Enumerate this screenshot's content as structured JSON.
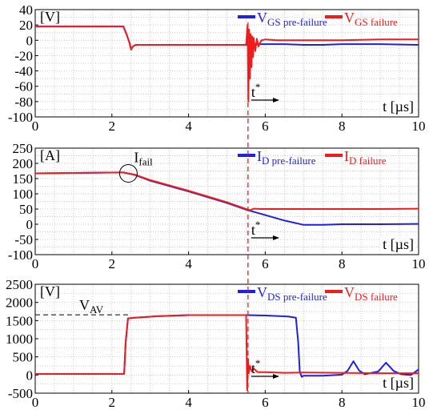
{
  "colors": {
    "pre": "#1f1fe6",
    "failure": "#ee1c1c",
    "grid": "#b4b4b4",
    "axis": "#000000"
  },
  "chart_data": [
    {
      "type": "line",
      "unit_label": "[V]",
      "xlabel": "t [µs]",
      "xlim": [
        0,
        10
      ],
      "ylim": [
        -100,
        40
      ],
      "x_ticks": [
        0,
        2,
        4,
        6,
        8,
        10
      ],
      "y_ticks": [
        40,
        20,
        0,
        -20,
        -40,
        -60,
        -80,
        -100
      ],
      "legend": [
        {
          "main": "V",
          "sub": "GS pre-failure"
        },
        {
          "main": "V",
          "sub": "GS failure"
        }
      ],
      "t_star_label": "t",
      "t_star_sup": "*",
      "series": [
        {
          "name": "VGS pre-failure",
          "color_key": "pre",
          "x": [
            0,
            2.3,
            2.38,
            2.45,
            2.5,
            2.55,
            2.62,
            3.0,
            5.5,
            5.6,
            5.8,
            6.0,
            6.5,
            7.0,
            7.5,
            8.0,
            9.0,
            10.0
          ],
          "y": [
            18,
            18,
            8,
            -2,
            -12,
            -8,
            -6,
            -6,
            -6,
            -5,
            -5,
            -5,
            -5,
            -6,
            -6,
            -5,
            -5,
            -6
          ]
        },
        {
          "name": "VGS failure",
          "color_key": "failure",
          "x": [
            0,
            2.3,
            2.38,
            2.45,
            2.5,
            2.55,
            2.62,
            3.0,
            5.5,
            5.54,
            5.56,
            5.58,
            5.6,
            5.62,
            5.64,
            5.66,
            5.68,
            5.7,
            5.74,
            5.78,
            5.82,
            5.9,
            6.0,
            6.3,
            7.0,
            8.0,
            9.0,
            10.0
          ],
          "y": [
            18,
            18,
            8,
            -2,
            -12,
            -8,
            -6,
            -6,
            -6,
            20,
            -80,
            14,
            -50,
            8,
            -35,
            5,
            -22,
            3,
            -14,
            2,
            -8,
            0,
            1,
            0,
            0,
            0,
            1,
            1
          ]
        }
      ]
    },
    {
      "type": "line",
      "unit_label": "[A]",
      "xlabel": "t [µs]",
      "xlim": [
        0,
        10
      ],
      "ylim": [
        -100,
        250
      ],
      "x_ticks": [
        0,
        2,
        4,
        6,
        8,
        10
      ],
      "y_ticks": [
        250,
        200,
        150,
        100,
        50,
        0,
        -50,
        -100
      ],
      "legend": [
        {
          "main": "I",
          "sub": "D pre-failure"
        },
        {
          "main": "I",
          "sub": "D failure"
        }
      ],
      "annotation": {
        "main": "I",
        "sub": "fail",
        "x": 2.43,
        "y": 167
      },
      "t_star_label": "t",
      "t_star_sup": "*",
      "series": [
        {
          "name": "ID pre-failure",
          "color_key": "pre",
          "x": [
            0,
            2.3,
            2.6,
            3.0,
            4.0,
            5.0,
            5.5,
            6.0,
            6.5,
            7.0,
            7.5,
            8.0,
            9.0,
            10.0
          ],
          "y": [
            167,
            170,
            162,
            143,
            108,
            70,
            48,
            30,
            12,
            -2,
            -2,
            0,
            0,
            1
          ]
        },
        {
          "name": "ID failure",
          "color_key": "failure",
          "x": [
            0,
            2.3,
            2.6,
            3.0,
            4.0,
            5.0,
            5.5,
            5.6,
            5.7,
            5.9,
            6.5,
            7.0,
            8.0,
            9.0,
            10.0
          ],
          "y": [
            167,
            170,
            163,
            145,
            110,
            72,
            50,
            46,
            51,
            50,
            50,
            50,
            50,
            50,
            51
          ]
        }
      ]
    },
    {
      "type": "line",
      "unit_label": "[V]",
      "xlabel": "t [µs]",
      "xlim": [
        0,
        10
      ],
      "ylim": [
        -500,
        2500
      ],
      "x_ticks": [
        0,
        2,
        4,
        6,
        8,
        10
      ],
      "y_ticks": [
        2500,
        2000,
        1500,
        1000,
        500,
        0,
        -500
      ],
      "legend": [
        {
          "main": "V",
          "sub": "DS pre-failure"
        },
        {
          "main": "V",
          "sub": "DS failure"
        }
      ],
      "reference": {
        "main": "V",
        "sub": "AV",
        "y": 1660
      },
      "t_star_label": "t",
      "t_star_sup": "*",
      "series": [
        {
          "name": "VDS pre-failure",
          "color_key": "pre",
          "x": [
            0,
            2.32,
            2.36,
            2.42,
            2.6,
            3.2,
            4.0,
            5.0,
            5.5,
            6.0,
            6.6,
            6.8,
            6.86,
            6.9,
            6.95,
            7.0,
            7.5,
            8.0,
            8.15,
            8.3,
            8.45,
            8.6,
            8.95,
            9.15,
            9.35,
            9.55,
            9.8,
            10.0
          ],
          "y": [
            30,
            30,
            900,
            1560,
            1580,
            1620,
            1650,
            1650,
            1650,
            1640,
            1610,
            1580,
            900,
            100,
            -50,
            -20,
            -20,
            10,
            120,
            380,
            120,
            20,
            100,
            340,
            110,
            20,
            0,
            150
          ]
        },
        {
          "name": "VDS failure",
          "color_key": "failure",
          "x": [
            0,
            2.32,
            2.36,
            2.42,
            2.6,
            3.2,
            4.0,
            5.0,
            5.5,
            5.53,
            5.55,
            5.57,
            5.6,
            5.65,
            5.7,
            5.8,
            6.0,
            6.5,
            7.0,
            8.0,
            9.0,
            10.0
          ],
          "y": [
            30,
            30,
            900,
            1560,
            1580,
            1620,
            1650,
            1650,
            1650,
            -420,
            450,
            50,
            250,
            100,
            180,
            80,
            80,
            60,
            70,
            60,
            50,
            50
          ]
        }
      ]
    }
  ]
}
